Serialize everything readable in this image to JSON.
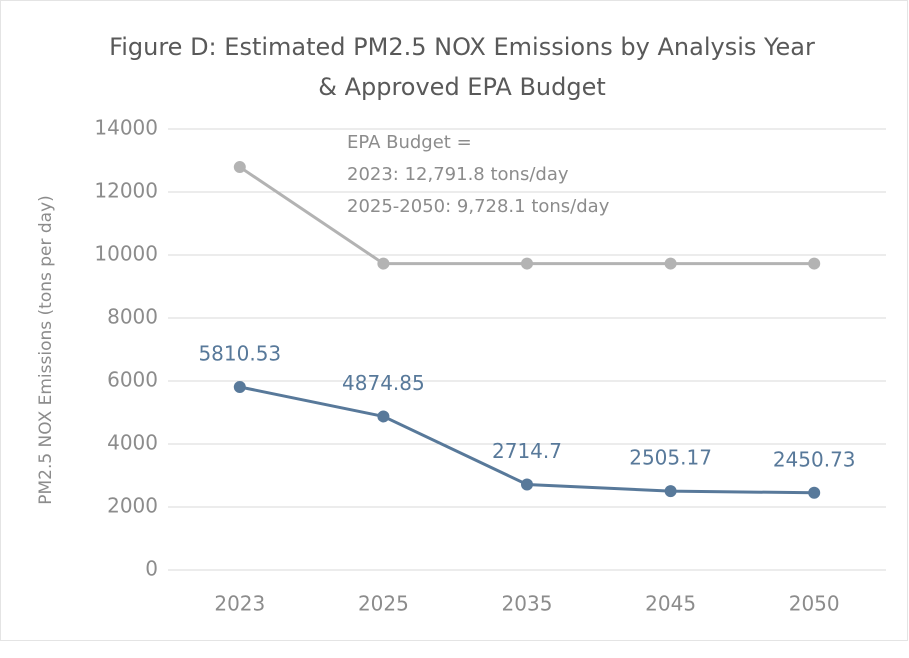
{
  "chart_data": {
    "type": "line",
    "title": [
      "Figure D:  Estimated PM2.5 NOX Emissions by Analysis Year",
      "& Approved EPA Budget"
    ],
    "y_label": "PM2.5 NOX Emissions (tons per day)",
    "annotations": [
      "EPA Budget =",
      "2023: 12,791.8 tons/day",
      "2025-2050: 9,728.1 tons/day"
    ],
    "categories": [
      "2023",
      "2025",
      "2035",
      "2045",
      "2050"
    ],
    "series": [
      {
        "color": "#b3b3b3",
        "values": [
          12791.8,
          9728.1,
          9728.1,
          9728.1,
          9728.1
        ],
        "data_labels": false
      },
      {
        "color": "#58799a",
        "values": [
          5810.53,
          4874.85,
          2714.7,
          2505.17,
          2450.73
        ],
        "data_labels": true
      }
    ],
    "ylim": [
      0,
      14000
    ],
    "yticks": [
      0,
      2000,
      4000,
      6000,
      8000,
      10000,
      12000,
      14000
    ],
    "grid": true
  }
}
